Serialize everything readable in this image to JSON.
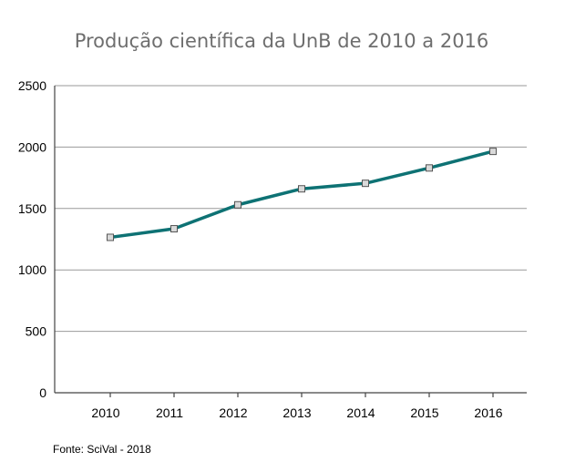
{
  "chart_data": {
    "type": "line",
    "title": "Produção científica da UnB de 2010 a 2016",
    "xlabel": "",
    "ylabel": "",
    "categories": [
      "2010",
      "2011",
      "2012",
      "2013",
      "2014",
      "2015",
      "2016"
    ],
    "series": [
      {
        "values": [
          1265,
          1335,
          1530,
          1660,
          1705,
          1830,
          1965
        ]
      }
    ],
    "ylim": [
      0,
      2500
    ],
    "yticks": [
      "0",
      "500",
      "1000",
      "1500",
      "2000",
      "2500"
    ],
    "grid": true,
    "legend": "none",
    "line_color": "#0e7274",
    "marker_fill": "#d9d9d9",
    "marker_stroke": "#555555"
  },
  "source": "Fonte: SciVal - 2018"
}
